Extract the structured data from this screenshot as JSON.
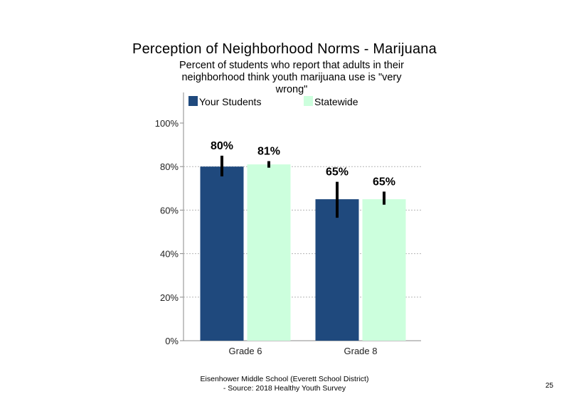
{
  "header": {
    "title": "Perception of Neighborhood Norms - Marijuana",
    "subtitle": "Percent of students who report that adults in their neighborhood think youth marijuana use is \"very wrong\""
  },
  "chart_data": {
    "type": "bar",
    "categories": [
      "Grade 6",
      "Grade 8"
    ],
    "series": [
      {
        "name": "Your Students",
        "color": "#1f497d",
        "values": [
          80,
          65
        ],
        "labels": [
          "80%",
          "65%"
        ],
        "error_low": [
          75.5,
          56.5
        ],
        "error_high": [
          85,
          73
        ]
      },
      {
        "name": "Statewide",
        "color": "#ccffdd",
        "values": [
          81,
          65
        ],
        "labels": [
          "81%",
          "65%"
        ],
        "error_low": [
          79.5,
          62.5
        ],
        "error_high": [
          82.5,
          68.5
        ]
      }
    ],
    "yticks": [
      "0%",
      "20%",
      "40%",
      "60%",
      "80%",
      "100%"
    ],
    "ylim": [
      0,
      100
    ],
    "grid": "dotted horizontal",
    "legend_position": "top"
  },
  "footer": {
    "line1": "Eisenhower Middle School (Everett School District)",
    "line2": "- Source: 2018 Healthy  Youth Survey"
  },
  "page_number": "25"
}
